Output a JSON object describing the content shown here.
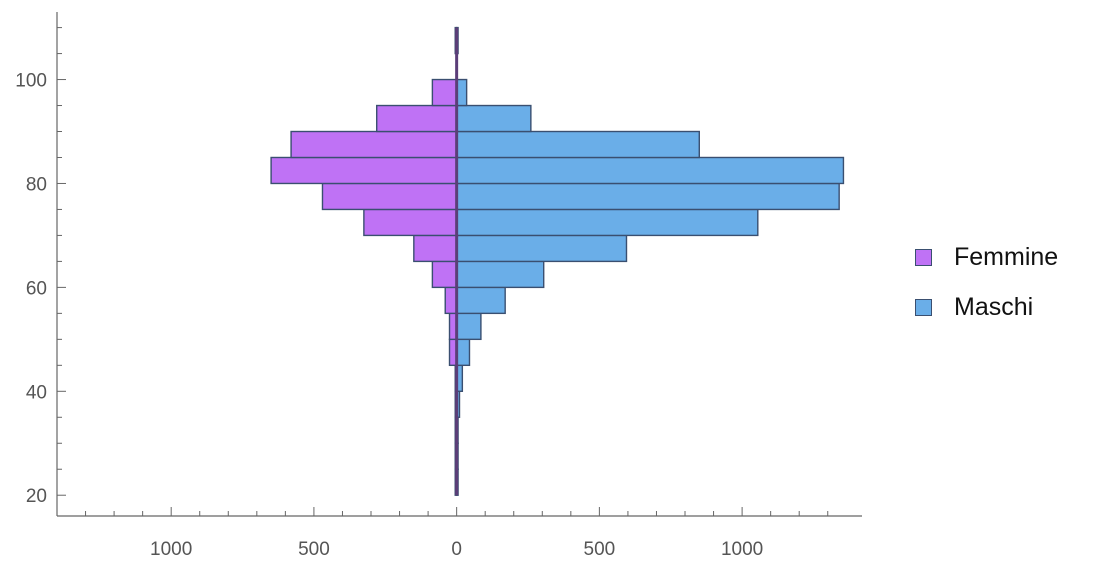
{
  "chart_data": {
    "type": "bar",
    "orientation": "horizontal-back-to-back",
    "bin_width": 5,
    "bins": [
      20,
      25,
      30,
      35,
      40,
      45,
      50,
      55,
      60,
      65,
      70,
      75,
      80,
      85,
      90,
      95,
      100,
      105
    ],
    "series": [
      {
        "name": "Femmine",
        "color": "#bf72f5",
        "side": "left",
        "values": [
          5,
          5,
          5,
          5,
          5,
          25,
          25,
          40,
          85,
          150,
          325,
          470,
          650,
          580,
          280,
          85,
          0,
          5
        ]
      },
      {
        "name": "Maschi",
        "color": "#6aaee8",
        "side": "right",
        "values": [
          5,
          5,
          5,
          10,
          20,
          45,
          85,
          170,
          305,
          595,
          1055,
          1340,
          1355,
          850,
          260,
          35,
          0,
          5
        ]
      }
    ],
    "x_ticks": [
      {
        "value": -1000,
        "label": "1000"
      },
      {
        "value": -500,
        "label": "500"
      },
      {
        "value": 0,
        "label": "0"
      },
      {
        "value": 500,
        "label": "500"
      },
      {
        "value": 1000,
        "label": "1000"
      }
    ],
    "y_ticks": [
      20,
      40,
      60,
      80,
      100
    ],
    "xlim": [
      -1400,
      1420
    ],
    "ylim": [
      16,
      113
    ],
    "xlabel": "",
    "ylabel": "",
    "title": "",
    "legend_position": "right",
    "grid": false
  }
}
